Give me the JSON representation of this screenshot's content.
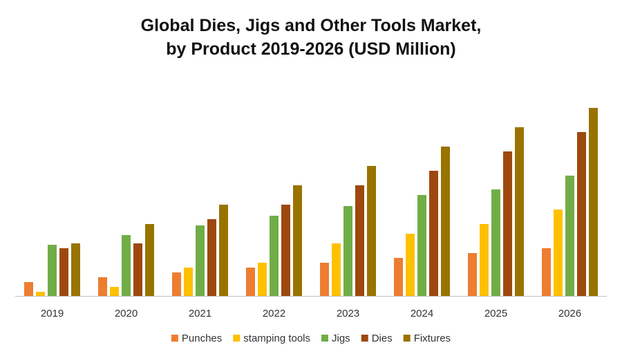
{
  "chart_data": {
    "type": "bar",
    "title_line1": "Global Dies, Jigs and Other Tools Market,",
    "title_line2": "by Product 2019-2026 (USD Million)",
    "xlabel": "",
    "ylabel": "",
    "categories": [
      "2019",
      "2020",
      "2021",
      "2022",
      "2023",
      "2024",
      "2025",
      "2026"
    ],
    "ylim": [
      0,
      280
    ],
    "grid": false,
    "legend_position": "bottom",
    "series": [
      {
        "name": "Punches",
        "color": "#ED7D31",
        "values": [
          20,
          27,
          34,
          41,
          48,
          55,
          62,
          69
        ]
      },
      {
        "name": "stamping tools",
        "color": "#FFC000",
        "values": [
          6,
          13,
          41,
          48,
          76,
          90,
          104,
          125
        ]
      },
      {
        "name": "Jigs",
        "color": "#70AD47",
        "values": [
          74,
          88,
          102,
          116,
          130,
          146,
          154,
          174
        ]
      },
      {
        "name": "Dies",
        "color": "#9E480E",
        "values": [
          69,
          76,
          111,
          132,
          160,
          181,
          209,
          237
        ]
      },
      {
        "name": "Fixtures",
        "color": "#997300",
        "values": [
          76,
          104,
          132,
          160,
          188,
          216,
          244,
          272
        ]
      }
    ]
  }
}
